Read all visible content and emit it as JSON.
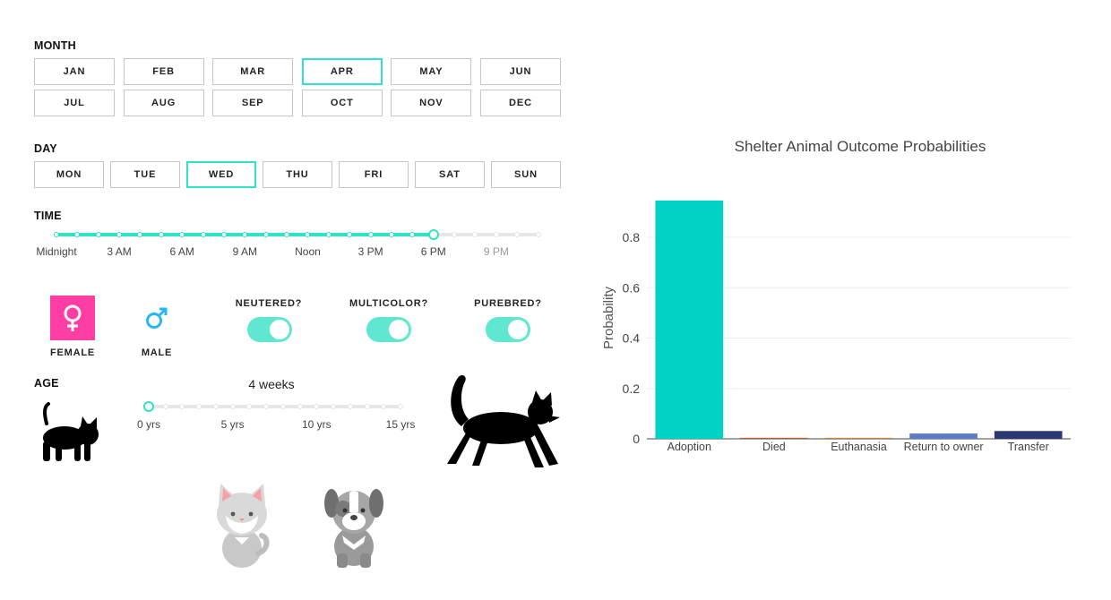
{
  "month": {
    "label": "MONTH",
    "options": [
      "JAN",
      "FEB",
      "MAR",
      "APR",
      "MAY",
      "JUN",
      "JUL",
      "AUG",
      "SEP",
      "OCT",
      "NOV",
      "DEC"
    ],
    "selected": "APR"
  },
  "day": {
    "label": "DAY",
    "options": [
      "MON",
      "TUE",
      "WED",
      "THU",
      "FRI",
      "SAT",
      "SUN"
    ],
    "selected": "WED"
  },
  "time": {
    "label": "TIME",
    "tick_labels": [
      "Midnight",
      "3 AM",
      "6 AM",
      "9 AM",
      "Noon",
      "3 PM",
      "6 PM",
      "9 PM"
    ],
    "steps": 24,
    "value": 18
  },
  "sex": {
    "female_label": "FEMALE",
    "male_label": "MALE",
    "selected": "FEMALE",
    "female_color": "#ff3ea5",
    "male_color": "#29b6f6"
  },
  "toggles": [
    {
      "label": "NEUTERED?",
      "on": true
    },
    {
      "label": "MULTICOLOR?",
      "on": true
    },
    {
      "label": "PUREBRED?",
      "on": true
    }
  ],
  "age": {
    "label": "AGE",
    "value_text": "4 weeks",
    "tick_labels": [
      "0 yrs",
      "5 yrs",
      "10 yrs",
      "15 yrs"
    ],
    "max": 15,
    "value": 0
  },
  "icons": {
    "kitten": "kitten-silhouette-icon",
    "cat": "adult-cat-silhouette-icon",
    "cat_avatar": "cat-avatar-icon",
    "dog_avatar": "dog-avatar-icon"
  },
  "colors": {
    "accent": "#2ee3c7"
  },
  "chart_data": {
    "type": "bar",
    "title": "Shelter Animal Outcome Probabilities",
    "xlabel": "",
    "ylabel": "Probability",
    "ylim": [
      0,
      0.96
    ],
    "yticks": [
      0,
      0.2,
      0.4,
      0.6,
      0.8
    ],
    "categories": [
      "Adoption",
      "Died",
      "Euthanasia",
      "Return to owner",
      "Transfer"
    ],
    "values": [
      0.946,
      0.004,
      0.004,
      0.021,
      0.031
    ],
    "colors": [
      "#00d2c5",
      "#c8532f",
      "#c9852c",
      "#5b7bc4",
      "#2b3872"
    ],
    "grid": true,
    "legend": "none"
  }
}
